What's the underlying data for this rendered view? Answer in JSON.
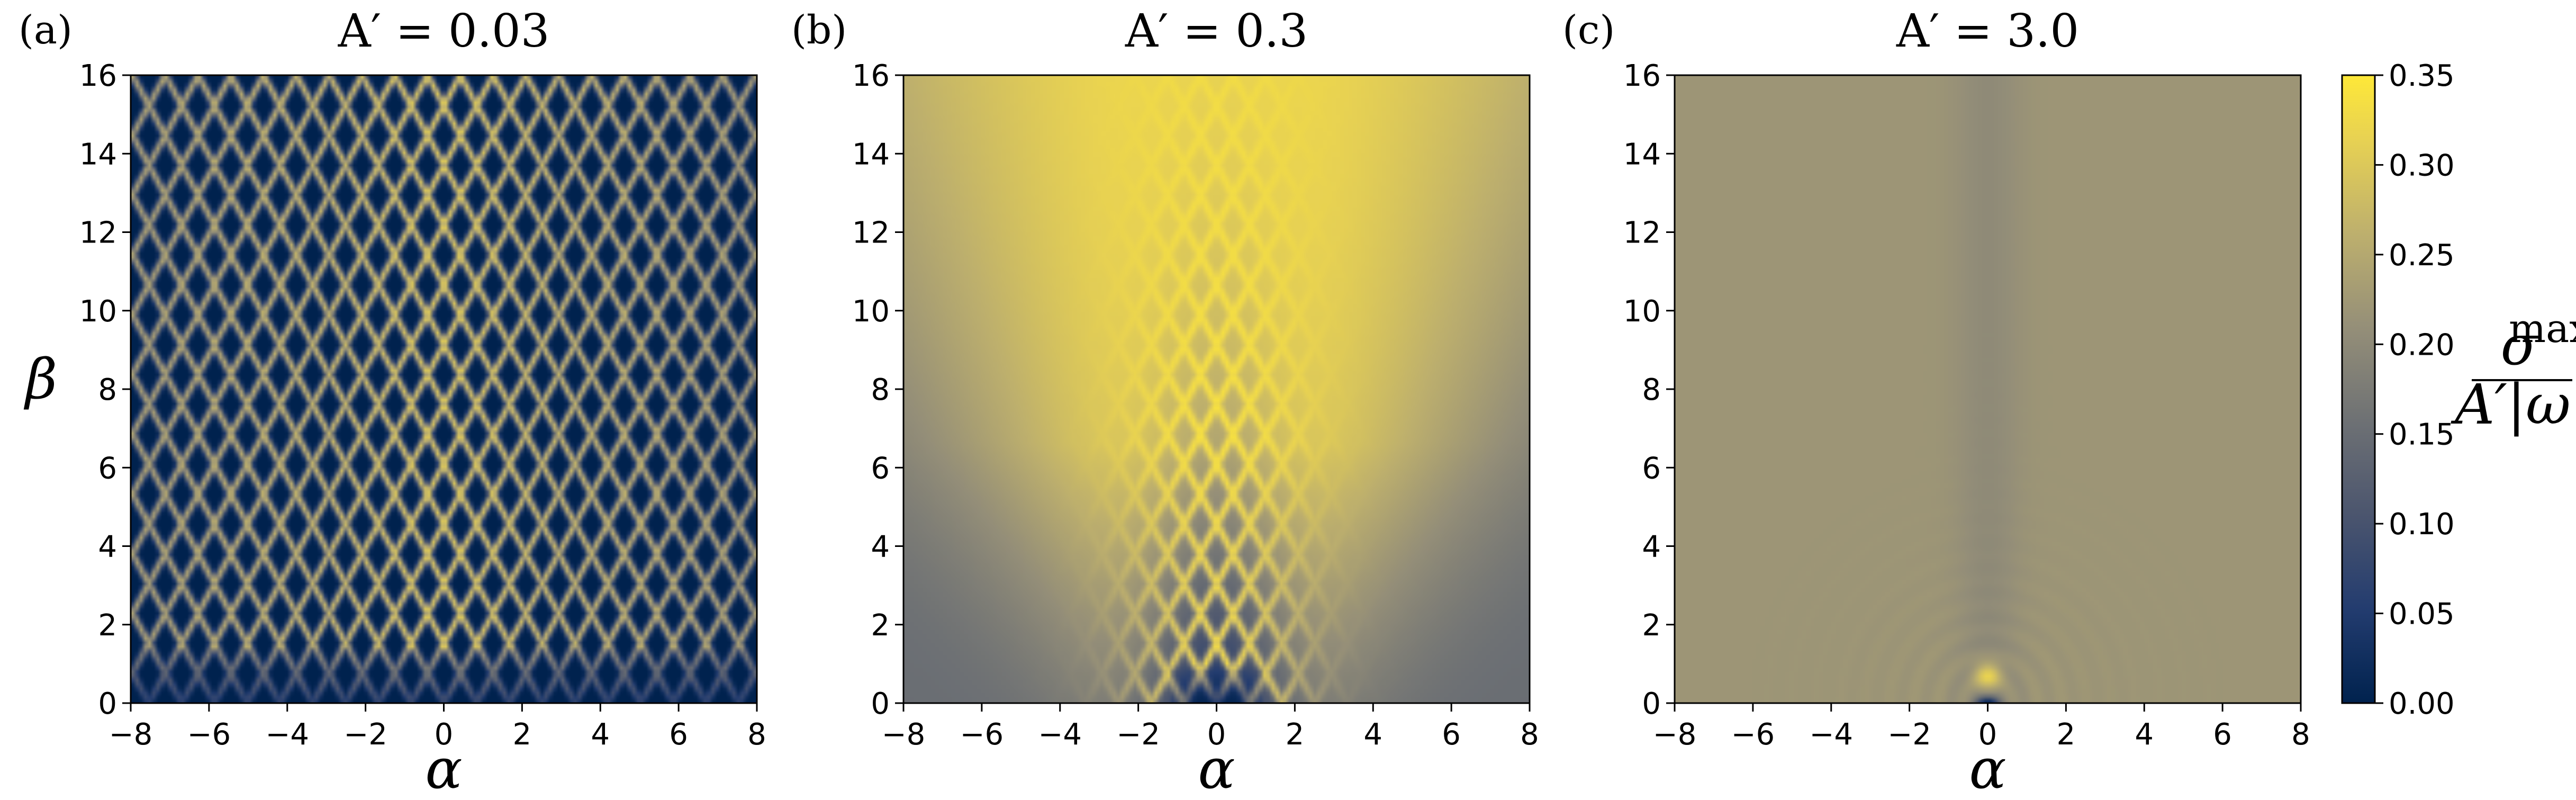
{
  "chart_data": [
    {
      "type": "heatmap",
      "panel_label": "(a)",
      "title": "A′ = 0.03",
      "xlabel": "α",
      "ylabel": "β",
      "xlim": [
        -8,
        8
      ],
      "ylim": [
        0,
        16
      ],
      "xticks": [
        -8,
        -6,
        -4,
        -2,
        0,
        2,
        4,
        6,
        8
      ],
      "yticks": [
        0,
        2,
        4,
        6,
        8,
        10,
        12,
        14,
        16
      ],
      "pattern": "dense diagonal criss-cross stripes alternating between ~0.00 and ~0.30, brightest near α=0 at large β"
    },
    {
      "type": "heatmap",
      "panel_label": "(b)",
      "title": "A′ = 0.3",
      "xlabel": "α",
      "ylabel": "",
      "xlim": [
        -8,
        8
      ],
      "ylim": [
        0,
        16
      ],
      "xticks": [
        -8,
        -6,
        -4,
        -2,
        0,
        2,
        4,
        6,
        8
      ],
      "yticks": [
        0,
        2,
        4,
        6,
        8,
        10,
        12,
        14,
        16
      ],
      "pattern": "smooth field ~0.30–0.33 near α=0 at high β, falling to ~0.15 toward edges; criss-cross stripes only near α=0, β<8; dark (~0.02) pocket near α=0, β<1"
    },
    {
      "type": "heatmap",
      "panel_label": "(c)",
      "title": "A′ = 3.0",
      "xlabel": "α",
      "ylabel": "",
      "xlim": [
        -8,
        8
      ],
      "ylim": [
        0,
        16
      ],
      "xticks": [
        -8,
        -6,
        -4,
        -2,
        0,
        2,
        4,
        6,
        8
      ],
      "yticks": [
        0,
        2,
        4,
        6,
        8,
        10,
        12,
        14,
        16
      ],
      "pattern": "nearly uniform ~0.22; slightly darker (~0.20) vertical band at α=0; bright spot (~0.33) at α=0, β≈0.7 with dark core (~0.02) at β≈0"
    }
  ],
  "colorbar": {
    "label_numerator": "σ",
    "label_numerator_sup": "max",
    "label_denominator": "A′|ω|",
    "range": [
      0,
      0.35
    ],
    "ticks": [
      "0.00",
      "0.05",
      "0.10",
      "0.15",
      "0.20",
      "0.25",
      "0.30",
      "0.35"
    ],
    "colormap": "cividis",
    "color_low": "#00224e",
    "color_mid": "#7c7b78",
    "color_high": "#fee838"
  }
}
